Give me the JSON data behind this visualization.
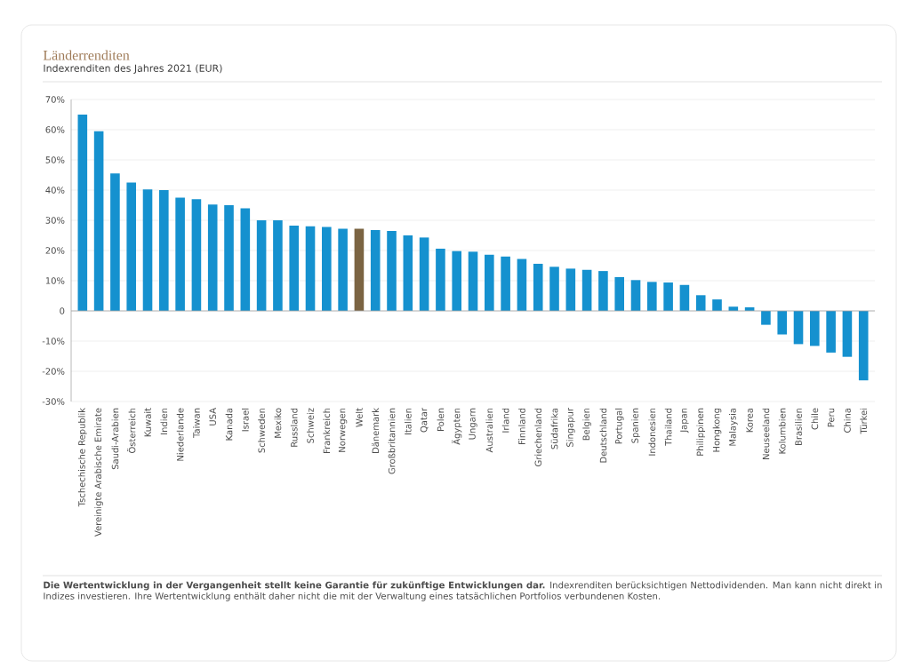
{
  "chart_data": {
    "type": "bar",
    "title": "Länderrenditen",
    "subtitle": "Indexrenditen des Jahres 2021 (EUR)",
    "categories": [
      "Tschechische Republik",
      "Vereinigte Arabische Emirate",
      "Saudi-Arabien",
      "Österreich",
      "Kuwait",
      "Indien",
      "Niederlande",
      "Taiwan",
      "USA",
      "Kanada",
      "Israel",
      "Schweden",
      "Mexiko",
      "Russland",
      "Schweiz",
      "Frankreich",
      "Norwegen",
      "Welt",
      "Dänemark",
      "Großbritannien",
      "Italien",
      "Qatar",
      "Polen",
      "Ägypten",
      "Ungarn",
      "Australien",
      "Irland",
      "Finnland",
      "Griechenland",
      "Südafrika",
      "Singapur",
      "Belgien",
      "Deutschland",
      "Portugal",
      "Spanien",
      "Indonesien",
      "Thailand",
      "Japan",
      "Philippinen",
      "Hongkong",
      "Malaysia",
      "Korea",
      "Neuseeland",
      "Kolumbien",
      "Brasilien",
      "Chile",
      "Peru",
      "China",
      "Türkei"
    ],
    "values": [
      65,
      59.5,
      45.5,
      42.5,
      40.2,
      40,
      37.5,
      37,
      35.2,
      35,
      34,
      30,
      30,
      28.2,
      28,
      27.8,
      27.2,
      27.2,
      26.8,
      26.5,
      25,
      24.3,
      20.6,
      19.8,
      19.6,
      18.6,
      18,
      17.2,
      15.6,
      14.6,
      14,
      13.6,
      13.2,
      11.2,
      10.2,
      9.6,
      9.4,
      8.6,
      5.2,
      3.8,
      1.4,
      1.2,
      -4.6,
      -7.8,
      -11,
      -11.6,
      -13.8,
      -15.2,
      -23
    ],
    "colors": [
      "#1591cf",
      "#1591cf",
      "#1591cf",
      "#1591cf",
      "#1591cf",
      "#1591cf",
      "#1591cf",
      "#1591cf",
      "#1591cf",
      "#1591cf",
      "#1591cf",
      "#1591cf",
      "#1591cf",
      "#1591cf",
      "#1591cf",
      "#1591cf",
      "#1591cf",
      "#7b6442",
      "#1591cf",
      "#1591cf",
      "#1591cf",
      "#1591cf",
      "#1591cf",
      "#1591cf",
      "#1591cf",
      "#1591cf",
      "#1591cf",
      "#1591cf",
      "#1591cf",
      "#1591cf",
      "#1591cf",
      "#1591cf",
      "#1591cf",
      "#1591cf",
      "#1591cf",
      "#1591cf",
      "#1591cf",
      "#1591cf",
      "#1591cf",
      "#1591cf",
      "#1591cf",
      "#1591cf",
      "#1591cf",
      "#1591cf",
      "#1591cf",
      "#1591cf",
      "#1591cf",
      "#1591cf",
      "#1591cf"
    ],
    "ylim": [
      -30,
      70
    ],
    "yticks": [
      {
        "value": -30,
        "label": "-30%"
      },
      {
        "value": -20,
        "label": "-20%"
      },
      {
        "value": -10,
        "label": "-10%"
      },
      0,
      {
        "value": 10,
        "label": "10%"
      },
      {
        "value": 20,
        "label": "20%"
      },
      {
        "value": 30,
        "label": "30%"
      },
      {
        "value": 40,
        "label": "40%"
      },
      {
        "value": 50,
        "label": "50%"
      },
      {
        "value": 60,
        "label": "60%"
      },
      {
        "value": 70,
        "label": "70%"
      }
    ],
    "grid": "y",
    "annotations": [
      "**Die Wertentwicklung in der Vergangenheit stellt keine Garantie für zukünftige Entwicklungen dar.** Indexrenditen berücksichtigen Nettodividenden. Man kann nicht direkt in Indizes investieren. Ihre Wertentwicklung enthält daher nicht die mit der Verwaltung eines tatsächlichen Portfolios verbundenen Kosten."
    ]
  }
}
